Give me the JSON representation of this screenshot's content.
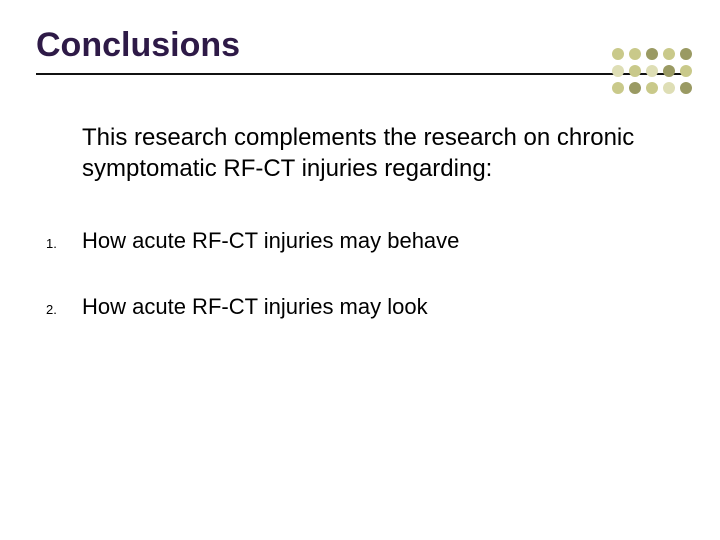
{
  "slide": {
    "title": "Conclusions",
    "title_color": "#2e1a47",
    "title_fontsize": 34,
    "rule_color": "#111111",
    "lead_text": "This research complements the research on chronic symptomatic RF-CT injuries regarding:",
    "lead_fontsize": 24,
    "items": [
      {
        "num": "1.",
        "text": "How acute RF-CT injuries may behave"
      },
      {
        "num": "2.",
        "text": "How acute RF-CT injuries may look"
      }
    ],
    "item_fontsize": 22,
    "background_color": "#ffffff"
  },
  "decor": {
    "dot_size": 12,
    "gap": 3,
    "colors": [
      "#c9c98a",
      "#c9c98a",
      "#9a9a63",
      "#c9c98a",
      "#9a9a63",
      "#dedeb5",
      "#c9c98a",
      "#dedeb5",
      "#9a9a63",
      "#c9c98a",
      "#c9c98a",
      "#9a9a63",
      "#c9c98a",
      "#dedeb5",
      "#9a9a63"
    ]
  }
}
